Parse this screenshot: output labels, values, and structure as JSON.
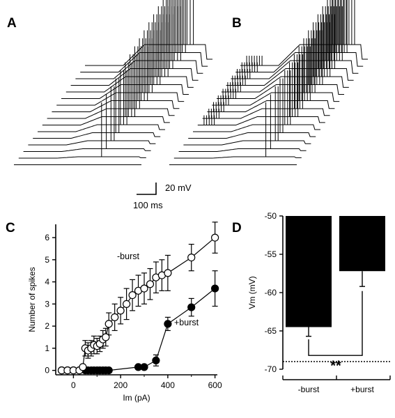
{
  "panels": {
    "a": "A",
    "b": "B",
    "c": "C",
    "d": "D"
  },
  "scalebar": {
    "voltage": "20 mV",
    "time": "100 ms"
  },
  "chart_data": [
    {
      "panel": "C",
      "type": "line",
      "xlabel": "Im (pA)",
      "ylabel": "Number of spikes",
      "xlim": [
        -75,
        610
      ],
      "ylim": [
        -0.2,
        6.6
      ],
      "xticks": [
        0,
        200,
        400,
        600
      ],
      "yticks": [
        0,
        1,
        2,
        3,
        4,
        5,
        6
      ],
      "grid": false,
      "series": [
        {
          "name": "-burst",
          "marker": "open-circle",
          "color": "#000000",
          "x": [
            -50,
            -25,
            0,
            25,
            40,
            50,
            62,
            75,
            87,
            100,
            112,
            125,
            137,
            150,
            175,
            200,
            225,
            250,
            275,
            300,
            325,
            350,
            375,
            400,
            500,
            600
          ],
          "y": [
            0,
            0,
            0,
            0,
            0.15,
            1.0,
            0.9,
            1.0,
            1.15,
            1.1,
            1.2,
            1.4,
            1.5,
            2.1,
            2.4,
            2.7,
            3.0,
            3.4,
            3.6,
            3.7,
            3.9,
            4.2,
            4.3,
            4.4,
            5.1,
            6.0
          ],
          "err": [
            0,
            0,
            0,
            0,
            0.1,
            0.35,
            0.35,
            0.35,
            0.4,
            0.35,
            0.35,
            0.4,
            0.4,
            0.5,
            0.6,
            0.6,
            0.7,
            0.7,
            0.7,
            0.7,
            0.7,
            0.7,
            0.7,
            0.8,
            0.6,
            0.7
          ]
        },
        {
          "name": "+burst",
          "marker": "filled-circle",
          "color": "#000000",
          "x": [
            -50,
            -25,
            0,
            25,
            50,
            62,
            75,
            87,
            100,
            112,
            125,
            137,
            150,
            275,
            300,
            350,
            400,
            500,
            600
          ],
          "y": [
            0,
            0,
            0,
            0,
            0,
            0,
            0,
            0,
            0,
            0,
            0,
            0,
            0,
            0.15,
            0.15,
            0.45,
            2.1,
            2.85,
            3.7
          ],
          "err": [
            0,
            0,
            0,
            0,
            0,
            0,
            0,
            0,
            0,
            0,
            0,
            0,
            0,
            0.1,
            0.1,
            0.25,
            0.3,
            0.4,
            0.8
          ]
        }
      ],
      "annotations": [
        "-burst",
        "+burst"
      ]
    },
    {
      "panel": "D",
      "type": "bar",
      "ylabel": "Vm (mV)",
      "categories": [
        "-burst",
        "+burst"
      ],
      "values": [
        -64.5,
        -57.2
      ],
      "err": [
        1.2,
        2.0
      ],
      "ylim": [
        -70,
        -50
      ],
      "yticks": [
        -70,
        -65,
        -60,
        -55,
        -50
      ],
      "bar_color": "#000000",
      "reference_line": -69,
      "significance": "**"
    }
  ]
}
